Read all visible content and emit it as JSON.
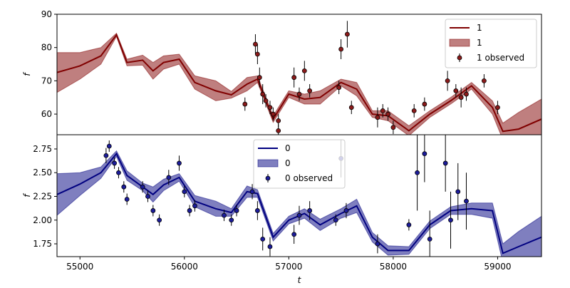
{
  "chart_data": [
    {
      "type": "line",
      "ylabel": "f",
      "xlim": [
        54780,
        59420
      ],
      "ylim": [
        53.8,
        90
      ],
      "yticks": [
        60,
        70,
        80,
        90
      ],
      "legend": "upper right",
      "series": [
        {
          "name": "1",
          "type": "line",
          "color": "#800000",
          "x": [
            54780,
            55000,
            55200,
            55350,
            55450,
            55600,
            55700,
            55800,
            55950,
            56100,
            56300,
            56450,
            56600,
            56700,
            56850,
            57000,
            57150,
            57300,
            57500,
            57650,
            57800,
            57950,
            58150,
            58350,
            58550,
            58750,
            58950,
            59050,
            59200,
            59420
          ],
          "values": [
            72.5,
            74.5,
            77.5,
            83.8,
            75.5,
            76.2,
            73,
            75.5,
            76.5,
            69.5,
            67,
            65.8,
            69,
            70.5,
            58.5,
            66,
            64.5,
            65,
            69.5,
            67.5,
            60,
            59.5,
            55,
            60,
            64,
            68.5,
            62,
            54.8,
            55.5,
            58.5
          ]
        },
        {
          "name": "1",
          "type": "band",
          "color": "#800000",
          "x": [
            54780,
            55000,
            55200,
            55350,
            55450,
            55600,
            55700,
            55800,
            55950,
            56100,
            56300,
            56450,
            56600,
            56700,
            56850,
            57000,
            57150,
            57300,
            57500,
            57650,
            57800,
            57950,
            58150,
            58350,
            58550,
            58750,
            58950,
            59050,
            59200,
            59420
          ],
          "lower": [
            66.5,
            70.5,
            75,
            83.3,
            74.5,
            74.7,
            70.5,
            73.5,
            75,
            67.5,
            64,
            64.8,
            67,
            69.5,
            57.5,
            65,
            63,
            63,
            68.5,
            65.5,
            59,
            58,
            53.5,
            59,
            63,
            67.5,
            60,
            52.3,
            50.5,
            52.5
          ],
          "upper": [
            78.5,
            78.5,
            80,
            84.3,
            76.5,
            77.7,
            75.5,
            77.5,
            78,
            71.5,
            70,
            66.8,
            71,
            71.5,
            59.5,
            67,
            66,
            67,
            70.5,
            69.5,
            61,
            61,
            56.5,
            61,
            65,
            69.5,
            64,
            57.3,
            60.5,
            64.5
          ]
        },
        {
          "name": "1 observed",
          "type": "errorbar",
          "color": "#8b1a1a",
          "x": [
            56580,
            56680,
            56700,
            56720,
            56750,
            56780,
            56820,
            56850,
            56900,
            56900,
            57050,
            57100,
            57150,
            57200,
            57480,
            57500,
            57560,
            57600,
            57850,
            57900,
            57950,
            58000,
            58200,
            58300,
            58520,
            58600,
            58650,
            58700,
            58870,
            59000
          ],
          "values": [
            63,
            81,
            78,
            71,
            66,
            64,
            62,
            60,
            58,
            55,
            71,
            66,
            73,
            67,
            68,
            79.5,
            84,
            62,
            59,
            61,
            60,
            56,
            61,
            63,
            70,
            67,
            65,
            66,
            70,
            62
          ],
          "errors": [
            2,
            3,
            3,
            3,
            3,
            2,
            2,
            2,
            2,
            2,
            3,
            2,
            3,
            2,
            2,
            3,
            4,
            2,
            3,
            2,
            2,
            2,
            2,
            2,
            3,
            2,
            3,
            2,
            2,
            2
          ]
        }
      ]
    },
    {
      "type": "line",
      "ylabel": "f",
      "xlabel": "t",
      "xlim": [
        54780,
        59420
      ],
      "ylim": [
        1.615,
        2.9
      ],
      "xticks": [
        55000,
        56000,
        57000,
        58000,
        59000
      ],
      "yticks": [
        {
          "value": 1.75,
          "label": "1.75"
        },
        {
          "value": 2,
          "label": "2.00"
        },
        {
          "value": 2.25,
          "label": "2.25"
        },
        {
          "value": 2.5,
          "label": "2.50"
        },
        {
          "value": 2.75,
          "label": "2.75"
        }
      ],
      "legend": "upper center",
      "series": [
        {
          "name": "0",
          "type": "line",
          "color": "#000080",
          "x": [
            54780,
            55000,
            55200,
            55350,
            55450,
            55600,
            55700,
            55800,
            55950,
            56100,
            56300,
            56450,
            56600,
            56700,
            56850,
            57000,
            57150,
            57300,
            57500,
            57650,
            57800,
            57950,
            58150,
            58350,
            58550,
            58750,
            58950,
            59050,
            59200,
            59420
          ],
          "values": [
            2.27,
            2.38,
            2.5,
            2.7,
            2.47,
            2.35,
            2.27,
            2.37,
            2.45,
            2.2,
            2.12,
            2.08,
            2.3,
            2.28,
            1.82,
            2.0,
            2.07,
            1.95,
            2.07,
            2.15,
            1.82,
            1.68,
            1.68,
            1.95,
            2.1,
            2.12,
            2.1,
            1.65,
            1.72,
            1.82
          ]
        },
        {
          "name": "0",
          "type": "band",
          "color": "#000080",
          "x": [
            54780,
            55000,
            55200,
            55350,
            55450,
            55600,
            55700,
            55800,
            55950,
            56100,
            56300,
            56450,
            56600,
            56700,
            56850,
            57000,
            57150,
            57300,
            57500,
            57650,
            57800,
            57950,
            58150,
            58350,
            58550,
            58750,
            58950,
            59050,
            59200,
            59420
          ],
          "lower": [
            2.05,
            2.26,
            2.44,
            2.67,
            2.42,
            2.31,
            2.19,
            2.31,
            2.41,
            2.14,
            2.04,
            2.04,
            2.24,
            2.24,
            1.78,
            1.96,
            2.02,
            1.89,
            2.02,
            2.08,
            1.77,
            1.63,
            1.64,
            1.91,
            2.06,
            2.06,
            2.02,
            1.55,
            1.56,
            1.6
          ],
          "upper": [
            2.49,
            2.5,
            2.56,
            2.73,
            2.52,
            2.39,
            2.35,
            2.43,
            2.49,
            2.26,
            2.2,
            2.12,
            2.36,
            2.32,
            1.86,
            2.04,
            2.12,
            2.01,
            2.12,
            2.22,
            1.87,
            1.73,
            1.72,
            1.99,
            2.14,
            2.18,
            2.18,
            1.75,
            1.88,
            2.04
          ]
        },
        {
          "name": "0 observed",
          "type": "errorbar",
          "color": "#1c1c9a",
          "x": [
            55250,
            55280,
            55330,
            55370,
            55420,
            55450,
            55600,
            55650,
            55700,
            55760,
            55850,
            55950,
            56000,
            56050,
            56100,
            56380,
            56450,
            56500,
            56650,
            56700,
            56750,
            56820,
            57050,
            57100,
            57200,
            57450,
            57500,
            57550,
            57850,
            58150,
            58230,
            58300,
            58350,
            58500,
            58550,
            58620,
            58700
          ],
          "values": [
            2.68,
            2.78,
            2.6,
            2.5,
            2.35,
            2.22,
            2.35,
            2.25,
            2.1,
            2.0,
            2.45,
            2.6,
            2.3,
            2.1,
            2.15,
            2.05,
            2.0,
            2.1,
            2.3,
            2.1,
            1.8,
            1.72,
            1.85,
            2.05,
            2.1,
            2.0,
            2.65,
            2.1,
            1.75,
            1.95,
            2.5,
            2.7,
            1.8,
            2.6,
            2.0,
            2.3,
            2.2
          ],
          "errors": [
            0.08,
            0.06,
            0.06,
            0.06,
            0.06,
            0.06,
            0.06,
            0.06,
            0.06,
            0.06,
            0.08,
            0.08,
            0.06,
            0.06,
            0.06,
            0.06,
            0.06,
            0.06,
            0.08,
            0.1,
            0.12,
            0.1,
            0.1,
            0.1,
            0.1,
            0.06,
            0.2,
            0.08,
            0.1,
            0.06,
            0.4,
            0.3,
            0.3,
            0.3,
            0.3,
            0.3,
            0.3
          ]
        }
      ]
    }
  ]
}
